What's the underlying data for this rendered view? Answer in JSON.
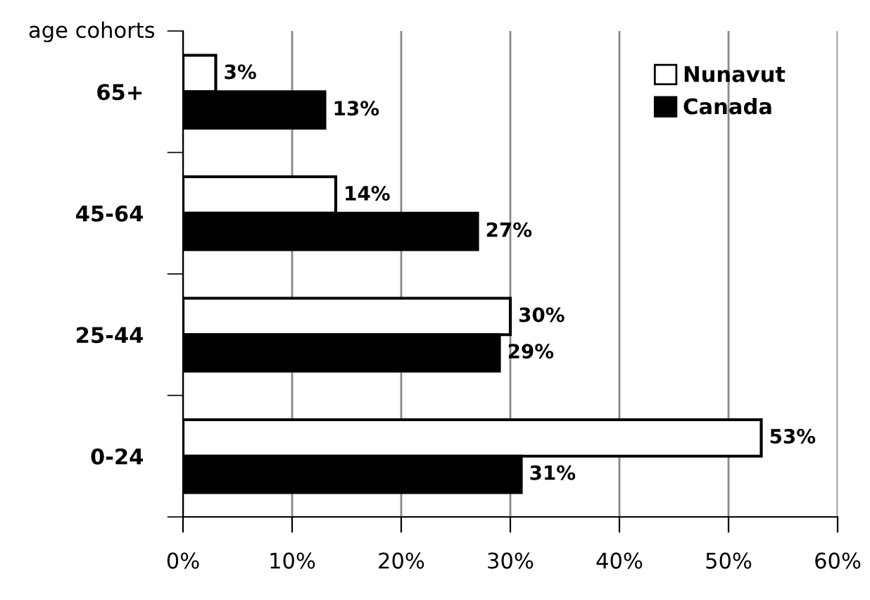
{
  "chart_data": {
    "type": "bar",
    "orientation": "horizontal",
    "ylabel": "age cohorts",
    "categories": [
      "65+",
      "45-64",
      "25-44",
      "0-24"
    ],
    "series": [
      {
        "name": "Nunavut",
        "color": "#ffffff",
        "values": [
          3,
          14,
          30,
          53
        ]
      },
      {
        "name": "Canada",
        "color": "#000000",
        "values": [
          13,
          27,
          29,
          31
        ]
      }
    ],
    "xlim": [
      0,
      60
    ],
    "xticks": [
      {
        "value": 0,
        "label": "0%"
      },
      {
        "value": 10,
        "label": "10%"
      },
      {
        "value": 20,
        "label": "20%"
      },
      {
        "value": 30,
        "label": "30%"
      },
      {
        "value": 40,
        "label": "40%"
      },
      {
        "value": 50,
        "label": "50%"
      },
      {
        "value": 60,
        "label": "60%"
      }
    ],
    "value_labels": [
      [
        "3%",
        "14%",
        "30%",
        "53%"
      ],
      [
        "13%",
        "27%",
        "29%",
        "31%"
      ]
    ],
    "grid": "x",
    "legend": "top right"
  }
}
